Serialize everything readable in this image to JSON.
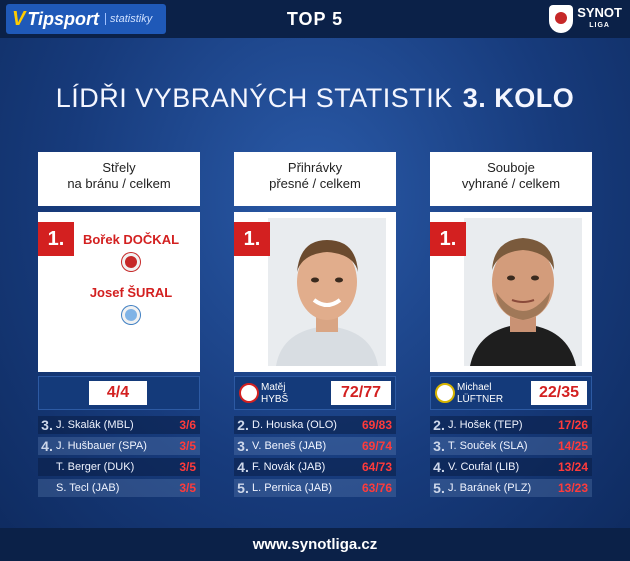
{
  "header": {
    "brand": "Tipsport",
    "brand_sub": "statistiky",
    "title": "TOP 5",
    "league_name": "SYNOT",
    "league_sub": "LIGA"
  },
  "headline": {
    "title": "LÍDŘI VYBRANÝCH STATISTIK",
    "round": "3. KOLO"
  },
  "columns": [
    {
      "heading_line1": "Střely",
      "heading_line2": "na bránu / celkem",
      "rank": "1.",
      "leaders": [
        "Bořek DOČKAL",
        "Josef ŠURAL"
      ],
      "result": "4/4",
      "list": [
        {
          "rank": "3.",
          "name": "J. Skalák (MBL)",
          "value": "3/6"
        },
        {
          "rank": "4.",
          "name": "J. Hušbauer (SPA)",
          "value": "3/5"
        },
        {
          "rank": "",
          "name": "T. Berger (DUK)",
          "value": "3/5"
        },
        {
          "rank": "",
          "name": "S. Tecl (JAB)",
          "value": "3/5"
        }
      ]
    },
    {
      "heading_line1": "Přihrávky",
      "heading_line2": "přesné / celkem",
      "rank": "1.",
      "player_first": "Matěj",
      "player_last": "HYBŠ",
      "result": "72/77",
      "list": [
        {
          "rank": "2.",
          "name": "D. Houska (OLO)",
          "value": "69/83"
        },
        {
          "rank": "3.",
          "name": "V. Beneš (JAB)",
          "value": "69/74"
        },
        {
          "rank": "4.",
          "name": "F. Novák (JAB)",
          "value": "64/73"
        },
        {
          "rank": "5.",
          "name": "L. Pernica (JAB)",
          "value": "63/76"
        }
      ]
    },
    {
      "heading_line1": "Souboje",
      "heading_line2": "vyhrané / celkem",
      "rank": "1.",
      "player_first": "Michael",
      "player_last": "LÜFTNER",
      "result": "22/35",
      "list": [
        {
          "rank": "2.",
          "name": "J. Hošek (TEP)",
          "value": "17/26"
        },
        {
          "rank": "3.",
          "name": "T. Souček (SLA)",
          "value": "14/25"
        },
        {
          "rank": "4.",
          "name": "V. Coufal (LIB)",
          "value": "13/24"
        },
        {
          "rank": "5.",
          "name": "J. Baránek (PLZ)",
          "value": "13/23"
        }
      ]
    }
  ],
  "footer": {
    "url": "www.synotliga.cz"
  }
}
